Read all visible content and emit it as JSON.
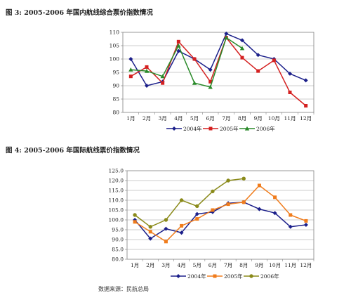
{
  "figure3_title": "图 3: 2005-2006 年国内航线综合票价指数情况",
  "figure4_title": "图 4: 2005-2006 年国际航线票价指数情况",
  "source_note": "数据来源：民航总局",
  "chart_data": [
    {
      "type": "line",
      "title": "图 3: 2005-2006 年国内航线综合票价指数情况",
      "categories": [
        "1月",
        "2月",
        "3月",
        "4月",
        "5月",
        "6月",
        "7月",
        "8月",
        "9月",
        "10月",
        "11月",
        "12月"
      ],
      "ylim": [
        80,
        110
      ],
      "yticks": [
        80,
        85,
        90,
        95,
        100,
        105,
        110
      ],
      "grid": true,
      "legend_position": "bottom",
      "series": [
        {
          "name": "2004年",
          "color": "#1b1f8a",
          "marker": "diamond",
          "values": [
            100.0,
            90.0,
            91.5,
            103.0,
            100.0,
            96.0,
            109.5,
            107.0,
            101.5,
            100.0,
            94.5,
            92.0
          ]
        },
        {
          "name": "2005年",
          "color": "#d42020",
          "marker": "square",
          "values": [
            93.5,
            97.0,
            91.0,
            106.5,
            100.0,
            91.5,
            108.0,
            100.5,
            95.5,
            99.5,
            87.5,
            82.5
          ]
        },
        {
          "name": "2006年",
          "color": "#2a8a2a",
          "marker": "triangle",
          "values": [
            96.0,
            95.5,
            93.5,
            105.0,
            91.0,
            89.5,
            108.0,
            104.0,
            null,
            null,
            null,
            null
          ]
        }
      ]
    },
    {
      "type": "line",
      "title": "图 4: 2005-2006 年国际航线票价指数情况",
      "categories": [
        "1月",
        "2月",
        "3月",
        "4月",
        "5月",
        "6月",
        "7月",
        "8月",
        "9月",
        "10月",
        "11月",
        "12月"
      ],
      "ylim": [
        80,
        125
      ],
      "yticks": [
        "80.0",
        "85.0",
        "90.0",
        "95.0",
        "100.0",
        "105.0",
        "110.0",
        "115.0",
        "120.0",
        "125.0"
      ],
      "grid": true,
      "legend_position": "bottom",
      "series": [
        {
          "name": "2004年",
          "color": "#1b1f8a",
          "marker": "diamond",
          "values": [
            100.0,
            90.5,
            95.5,
            93.5,
            103.0,
            104.0,
            108.5,
            109.0,
            105.5,
            103.5,
            96.5,
            97.5
          ]
        },
        {
          "name": "2005年",
          "color": "#f07c1c",
          "marker": "square",
          "values": [
            99.0,
            94.0,
            89.0,
            97.0,
            100.5,
            105.0,
            108.0,
            109.0,
            117.5,
            111.5,
            102.5,
            99.5
          ]
        },
        {
          "name": "2006年",
          "color": "#8a8a1a",
          "marker": "circle",
          "values": [
            102.5,
            96.5,
            100.0,
            110.0,
            107.0,
            114.5,
            120.0,
            121.0,
            null,
            null,
            null,
            null
          ]
        }
      ]
    }
  ]
}
